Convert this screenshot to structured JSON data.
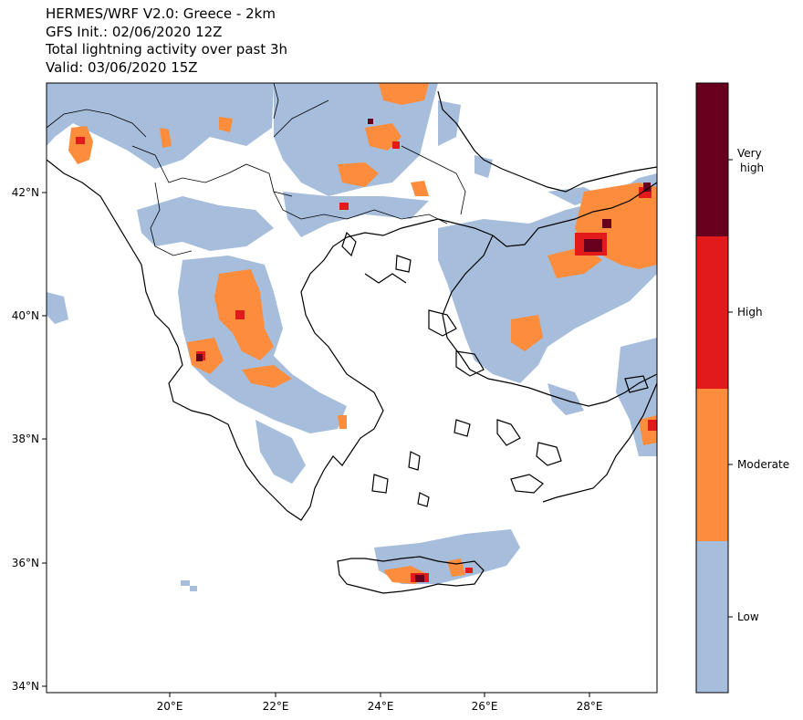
{
  "title": {
    "line1": "HERMES/WRF V2.0: Greece - 2km",
    "line2": "GFS Init.: 02/06/2020 12Z",
    "line3": "Total lightning activity over past 3h",
    "line4": "Valid: 03/06/2020 15Z"
  },
  "axes": {
    "lat_ticks": [
      "42°N",
      "40°N",
      "38°N",
      "36°N",
      "34°N"
    ],
    "lon_ticks": [
      "20°E",
      "22°E",
      "24°E",
      "26°E",
      "28°E"
    ]
  },
  "colorbar": {
    "levels": [
      {
        "label": "Very high",
        "color": "#67001f"
      },
      {
        "label": "High",
        "color": "#e31a1c"
      },
      {
        "label": "Moderate",
        "color": "#fd8d3c"
      },
      {
        "label": "Low",
        "color": "#a6bddb"
      }
    ],
    "very_high_line1": "Very",
    "very_high_line2": "high",
    "high": "High",
    "moderate": "Moderate",
    "low": "Low"
  },
  "colors": {
    "low": "#a6bddb",
    "moderate": "#fd8d3c",
    "high": "#e31a1c",
    "very_high": "#67001f"
  }
}
